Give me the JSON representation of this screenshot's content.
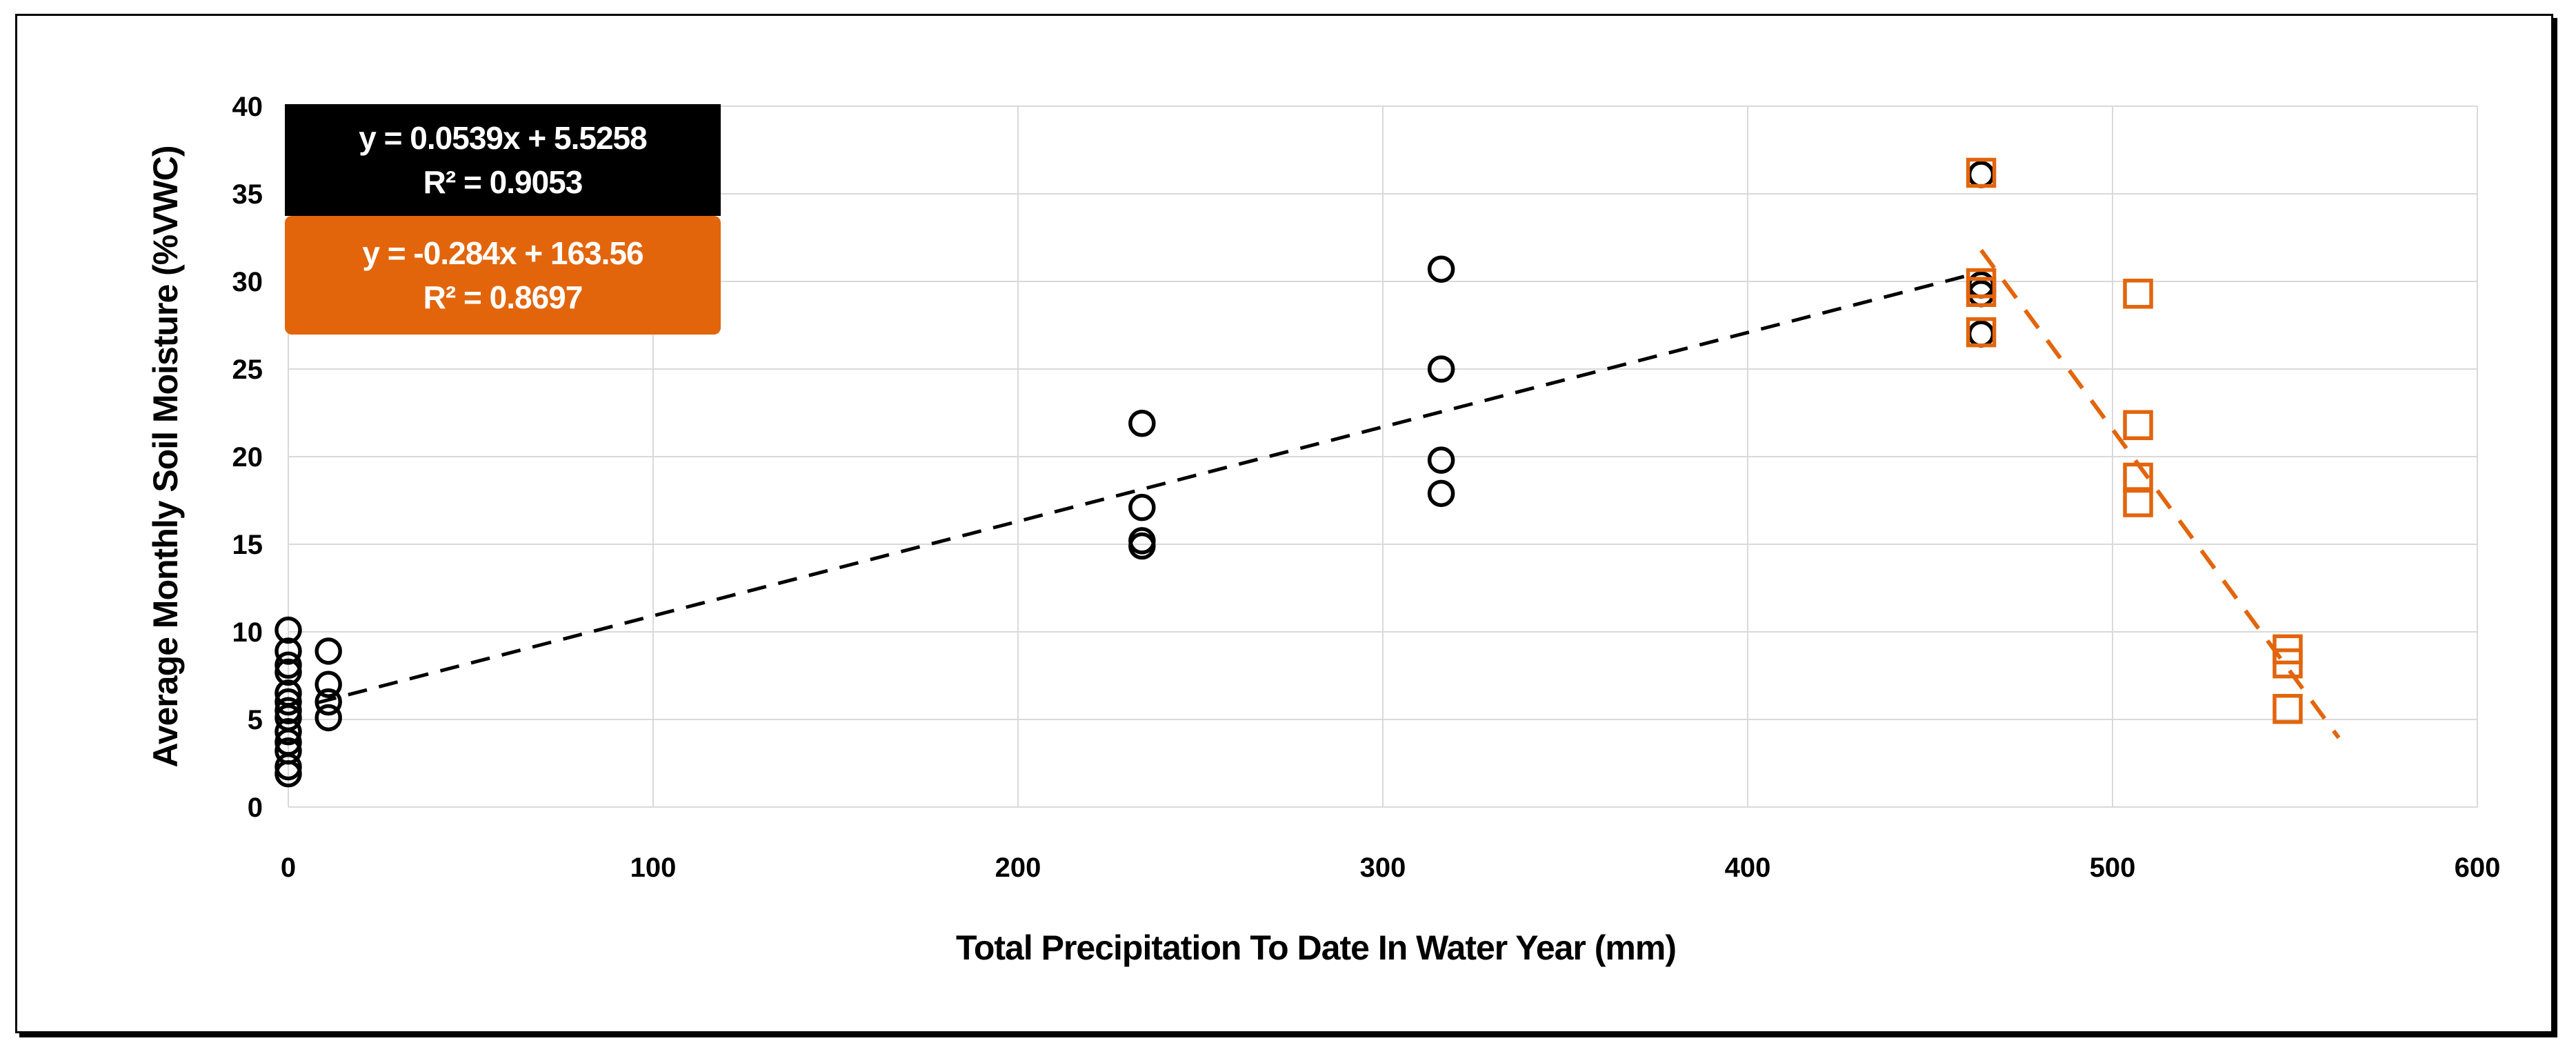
{
  "figure": {
    "background_color": "#FFFFFF",
    "frame_border_color": "#000000"
  },
  "colors": {
    "black_series": "#000000",
    "orange_series": "#E2650C",
    "gridline": "#D9D9D9",
    "equation_text": "#FFFFFF"
  },
  "chart_data": {
    "type": "scatter",
    "title": "",
    "xlabel": "Total Precipitation To Date In Water Year (mm)",
    "ylabel": "Average Monthly Soil Moisture (%VWC)",
    "xlim": [
      0,
      600
    ],
    "ylim": [
      0,
      40
    ],
    "xticks": [
      0,
      100,
      200,
      300,
      400,
      500,
      600
    ],
    "yticks": [
      0,
      5,
      10,
      15,
      20,
      25,
      30,
      35,
      40
    ],
    "grid": true,
    "legend": "none",
    "series": [
      {
        "id": "black-circle-series",
        "marker": "circle",
        "color": "#000000",
        "points": [
          [
            0,
            10.1
          ],
          [
            0,
            8.9
          ],
          [
            0,
            8.1
          ],
          [
            0,
            7.7
          ],
          [
            0,
            6.5
          ],
          [
            0,
            6.0
          ],
          [
            0,
            5.5
          ],
          [
            0,
            5.1
          ],
          [
            0,
            4.3
          ],
          [
            0,
            3.7
          ],
          [
            0,
            3.2
          ],
          [
            0,
            2.3
          ],
          [
            0,
            1.9
          ],
          [
            11,
            8.9
          ],
          [
            11,
            7.0
          ],
          [
            11,
            6.0
          ],
          [
            11,
            5.1
          ],
          [
            234,
            21.9
          ],
          [
            234,
            17.1
          ],
          [
            234,
            15.2
          ],
          [
            234,
            14.9
          ],
          [
            316,
            30.7
          ],
          [
            316,
            25.0
          ],
          [
            316,
            19.8
          ],
          [
            316,
            17.9
          ],
          [
            464,
            36.1
          ],
          [
            464,
            29.8
          ],
          [
            464,
            29.3
          ],
          [
            464,
            27.0
          ]
        ]
      },
      {
        "id": "orange-square-series",
        "marker": "square",
        "color": "#E2650C",
        "points": [
          [
            464,
            36.2
          ],
          [
            464,
            29.9
          ],
          [
            464,
            29.4
          ],
          [
            464,
            27.1
          ],
          [
            507,
            29.3
          ],
          [
            507,
            21.8
          ],
          [
            507,
            18.8
          ],
          [
            507,
            17.4
          ],
          [
            548,
            9.0
          ],
          [
            548,
            8.2
          ],
          [
            548,
            5.6
          ]
        ]
      }
    ],
    "trendlines": [
      {
        "id": "black-trendline",
        "color": "#000000",
        "style": "dashed",
        "slope": 0.0539,
        "intercept": 5.5258,
        "x_start": 8,
        "x_end": 460,
        "equation": "y = 0.0539x + 5.5258",
        "r2": "R² = 0.9053"
      },
      {
        "id": "orange-trendline",
        "color": "#E2650C",
        "style": "dashed",
        "slope": -0.284,
        "intercept": 163.56,
        "x_start": 464,
        "x_end": 562,
        "equation": "y = -0.284x + 163.56",
        "r2": "R² = 0.8697"
      }
    ]
  }
}
